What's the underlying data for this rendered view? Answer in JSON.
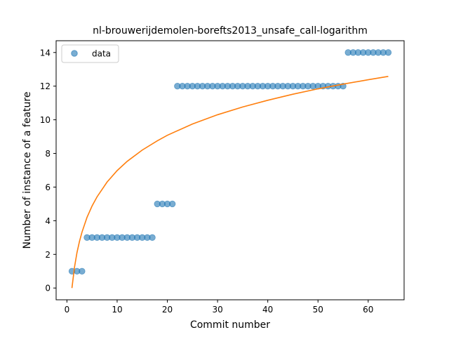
{
  "chart_data": {
    "type": "scatter",
    "title": "nl-brouwerijdemolen-borefts2013_unsafe_call-logarithm",
    "xlabel": "Commit number",
    "ylabel": "Number of instance of a feature",
    "xlim": [
      -2.15,
      67.15
    ],
    "ylim": [
      -0.7,
      14.7
    ],
    "xticks": [
      0,
      10,
      20,
      30,
      40,
      50,
      60
    ],
    "yticks": [
      0,
      2,
      4,
      6,
      8,
      10,
      12,
      14
    ],
    "grid": false,
    "legend_position": "upper-left",
    "colors": {
      "data": "#1f77b4",
      "fit": "#ff7f0e"
    },
    "series": [
      {
        "name": "data",
        "type": "scatter",
        "x": [
          1,
          2,
          3,
          4,
          5,
          6,
          7,
          8,
          9,
          10,
          11,
          12,
          13,
          14,
          15,
          16,
          17,
          18,
          19,
          20,
          21,
          22,
          23,
          24,
          25,
          26,
          27,
          28,
          29,
          30,
          31,
          32,
          33,
          34,
          35,
          36,
          37,
          38,
          39,
          40,
          41,
          42,
          43,
          44,
          45,
          46,
          47,
          48,
          49,
          50,
          51,
          52,
          53,
          54,
          55,
          56,
          57,
          58,
          59,
          60,
          61,
          62,
          63,
          64
        ],
        "y": [
          1,
          1,
          1,
          3,
          3,
          3,
          3,
          3,
          3,
          3,
          3,
          3,
          3,
          3,
          3,
          3,
          3,
          5,
          5,
          5,
          5,
          12,
          12,
          12,
          12,
          12,
          12,
          12,
          12,
          12,
          12,
          12,
          12,
          12,
          12,
          12,
          12,
          12,
          12,
          12,
          12,
          12,
          12,
          12,
          12,
          12,
          12,
          12,
          12,
          12,
          12,
          12,
          12,
          12,
          12,
          14,
          14,
          14,
          14,
          14,
          14,
          14,
          14,
          14
        ]
      },
      {
        "type": "line",
        "x": [
          1,
          1.5,
          2,
          2.5,
          3,
          4,
          5,
          6,
          8,
          10,
          12,
          15,
          18,
          20,
          25,
          30,
          35,
          40,
          45,
          50,
          55,
          60,
          64
        ],
        "y": [
          0,
          1.22,
          2.1,
          2.77,
          3.32,
          4.2,
          4.87,
          5.42,
          6.3,
          6.98,
          7.53,
          8.2,
          8.75,
          9.08,
          9.75,
          10.3,
          10.76,
          11.16,
          11.52,
          11.84,
          12.12,
          12.38,
          12.58
        ]
      }
    ]
  }
}
